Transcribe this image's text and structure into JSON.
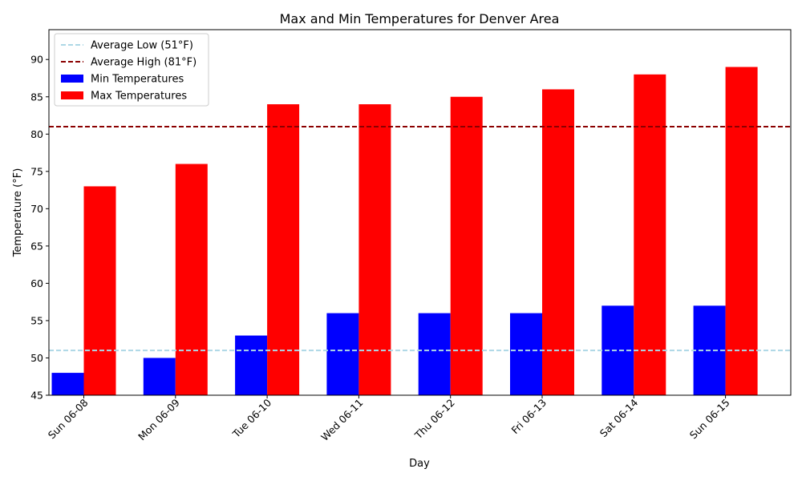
{
  "chart_data": {
    "type": "bar",
    "title": "Max and Min Temperatures for Denver Area",
    "xlabel": "Day",
    "ylabel": "Temperature (°F)",
    "ylim": [
      45,
      94
    ],
    "yticks": [
      45,
      50,
      55,
      60,
      65,
      70,
      75,
      80,
      85,
      90
    ],
    "categories": [
      "Sun 06-08",
      "Mon 06-09",
      "Tue 06-10",
      "Wed 06-11",
      "Thu 06-12",
      "Fri 06-13",
      "Sat 06-14",
      "Sun 06-15"
    ],
    "series": [
      {
        "name": "Min Temperatures",
        "color": "#0000ff",
        "values": [
          48,
          50,
          53,
          56,
          56,
          56,
          57,
          57
        ]
      },
      {
        "name": "Max Temperatures",
        "color": "#ff0000",
        "values": [
          73,
          76,
          84,
          84,
          85,
          86,
          88,
          89
        ]
      }
    ],
    "reference_lines": [
      {
        "name": "Average Low (51°F)",
        "value": 51,
        "color": "#add8e6",
        "style": "dashed"
      },
      {
        "name": "Average High (81°F)",
        "value": 81,
        "color": "#8b0000",
        "style": "dashed"
      }
    ],
    "legend_location": "upper-left",
    "grid": false
  }
}
